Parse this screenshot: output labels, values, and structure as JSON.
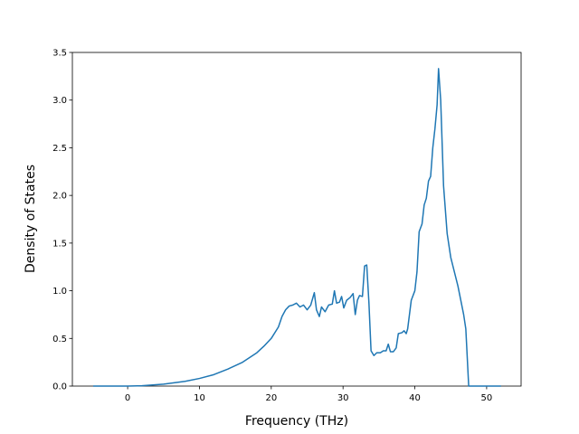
{
  "chart_data": {
    "type": "line",
    "xlabel": "Frequency (THz)",
    "ylabel": "Density of States",
    "xlim": [
      -7.7,
      54.8
    ],
    "ylim": [
      0,
      3.5
    ],
    "xticks": [
      0,
      10,
      20,
      30,
      40,
      50
    ],
    "yticks": [
      {
        "value": 0,
        "label": "0.0"
      },
      {
        "value": 0.5,
        "label": "0.5"
      },
      {
        "value": 1,
        "label": "1.0"
      },
      {
        "value": 1.5,
        "label": "1.5"
      },
      {
        "value": 2,
        "label": "2.0"
      },
      {
        "value": 2.5,
        "label": "2.5"
      },
      {
        "value": 3,
        "label": "3.0"
      },
      {
        "value": 3.5,
        "label": "3.5"
      }
    ],
    "grid": false,
    "series": [
      {
        "color": "#1f77b4",
        "x": [
          -4.8,
          0,
          2,
          5,
          8,
          10,
          12,
          14,
          16,
          18,
          19,
          20,
          21,
          21.5,
          22,
          22.5,
          23,
          23.5,
          24,
          24.5,
          25,
          25.5,
          26,
          26.3,
          26.7,
          27,
          27.5,
          28,
          28.5,
          28.8,
          29.1,
          29.5,
          29.8,
          30.1,
          30.5,
          31,
          31.4,
          31.7,
          32,
          32.3,
          32.7,
          33,
          33.3,
          33.6,
          33.9,
          34.3,
          34.7,
          35.2,
          35.6,
          36,
          36.3,
          36.6,
          37,
          37.4,
          37.7,
          38.2,
          38.5,
          38.8,
          39,
          39.5,
          40,
          40.3,
          40.6,
          41,
          41.3,
          41.6,
          41.9,
          42.2,
          42.5,
          42.8,
          43.1,
          43.3,
          43.6,
          44,
          44.5,
          45,
          46,
          46.8,
          47.1,
          47.5,
          52
        ],
        "values": [
          0,
          0,
          0.003,
          0.02,
          0.05,
          0.08,
          0.12,
          0.18,
          0.25,
          0.35,
          0.42,
          0.5,
          0.62,
          0.73,
          0.8,
          0.84,
          0.85,
          0.87,
          0.83,
          0.85,
          0.8,
          0.85,
          0.98,
          0.8,
          0.73,
          0.83,
          0.78,
          0.85,
          0.86,
          1.0,
          0.87,
          0.88,
          0.94,
          0.82,
          0.9,
          0.93,
          0.97,
          0.75,
          0.9,
          0.95,
          0.94,
          1.26,
          1.27,
          0.88,
          0.37,
          0.32,
          0.35,
          0.35,
          0.37,
          0.37,
          0.44,
          0.36,
          0.36,
          0.4,
          0.55,
          0.56,
          0.58,
          0.55,
          0.6,
          0.9,
          1.0,
          1.2,
          1.62,
          1.7,
          1.9,
          1.97,
          2.15,
          2.2,
          2.5,
          2.7,
          2.95,
          3.33,
          3.0,
          2.1,
          1.6,
          1.35,
          1.05,
          0.75,
          0.6,
          0,
          0
        ]
      }
    ]
  }
}
